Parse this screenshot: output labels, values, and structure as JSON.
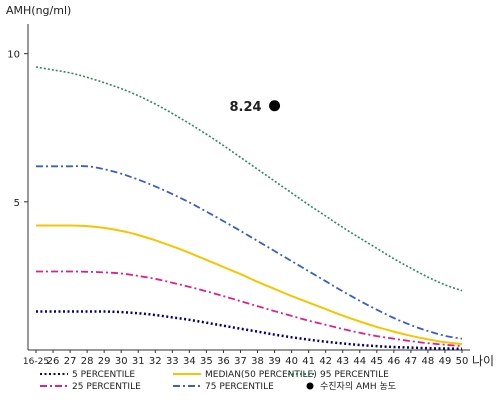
{
  "chart_data": {
    "type": "line",
    "ylabel": "AMH(ng/ml)",
    "xlabel": "나이",
    "x": [
      "16-25",
      "26",
      "27",
      "28",
      "29",
      "30",
      "31",
      "32",
      "33",
      "34",
      "35",
      "36",
      "37",
      "38",
      "39",
      "40",
      "41",
      "42",
      "43",
      "44",
      "45",
      "46",
      "47",
      "48",
      "49",
      "50"
    ],
    "yticks": [
      5,
      10
    ],
    "ylim": [
      0,
      11
    ],
    "series": [
      {
        "name": "5 PERCENTILE",
        "color": "#000080",
        "dash": "2,2.5",
        "width": 2.5,
        "values": [
          1.3,
          1.3,
          1.3,
          1.3,
          1.3,
          1.28,
          1.24,
          1.18,
          1.1,
          1.02,
          0.92,
          0.82,
          0.72,
          0.62,
          0.52,
          0.43,
          0.35,
          0.28,
          0.22,
          0.17,
          0.13,
          0.1,
          0.08,
          0.06,
          0.05,
          0.04
        ]
      },
      {
        "name": "25 PERCENTILE",
        "color": "#e0208a",
        "dash": "7,3,2,3",
        "width": 1.8,
        "values": [
          2.65,
          2.65,
          2.65,
          2.64,
          2.62,
          2.58,
          2.5,
          2.4,
          2.27,
          2.13,
          1.98,
          1.82,
          1.65,
          1.48,
          1.31,
          1.15,
          0.99,
          0.85,
          0.71,
          0.58,
          0.47,
          0.38,
          0.3,
          0.23,
          0.18,
          0.13
        ]
      },
      {
        "name": "MEDIAN(50 PERCENTILE)",
        "color": "#f4c600",
        "dash": "",
        "width": 2,
        "values": [
          4.2,
          4.2,
          4.2,
          4.18,
          4.12,
          4.02,
          3.88,
          3.7,
          3.5,
          3.28,
          3.04,
          2.8,
          2.56,
          2.3,
          2.06,
          1.82,
          1.6,
          1.38,
          1.16,
          0.96,
          0.78,
          0.62,
          0.48,
          0.36,
          0.26,
          0.2
        ]
      },
      {
        "name": "75 PERCENTILE",
        "color": "#3a5fcd",
        "dash": "7,3,2,3",
        "width": 1.8,
        "values": [
          6.2,
          6.2,
          6.2,
          6.2,
          6.1,
          5.95,
          5.75,
          5.52,
          5.26,
          4.98,
          4.67,
          4.35,
          4.02,
          3.68,
          3.34,
          3.0,
          2.66,
          2.32,
          1.98,
          1.66,
          1.36,
          1.08,
          0.84,
          0.64,
          0.48,
          0.38
        ]
      },
      {
        "name": "95 PERCENTILE",
        "color": "#2e8b57",
        "dash": "2,2",
        "width": 1.6,
        "values": [
          9.55,
          9.45,
          9.35,
          9.2,
          9.02,
          8.82,
          8.58,
          8.3,
          7.98,
          7.64,
          7.28,
          6.9,
          6.5,
          6.1,
          5.7,
          5.3,
          4.9,
          4.52,
          4.14,
          3.78,
          3.43,
          3.08,
          2.76,
          2.46,
          2.2,
          2.0
        ]
      }
    ],
    "annotation": {
      "label": "8.24",
      "x": "39",
      "y": 8.24,
      "color": "#000000"
    },
    "legend": {
      "placement": "bottom",
      "items": [
        {
          "label": "5 PERCENTILE",
          "color": "#000080",
          "dash": "2,2.5"
        },
        {
          "label": "25 PERCENTILE",
          "color": "#e0208a",
          "dash": "7,3,2,3"
        },
        {
          "label": "MEDIAN(50 PERCENTILE)",
          "color": "#f4c600",
          "dash": ""
        },
        {
          "label": "75 PERCENTILE",
          "color": "#3a5fcd",
          "dash": "7,3,2,3"
        },
        {
          "label": "95 PERCENTILE",
          "color": "#2e8b57",
          "dash": "2,2"
        },
        {
          "label": "수진자의 AMH 농도",
          "color": "#000000",
          "marker": "dot"
        }
      ]
    },
    "grid": false
  }
}
